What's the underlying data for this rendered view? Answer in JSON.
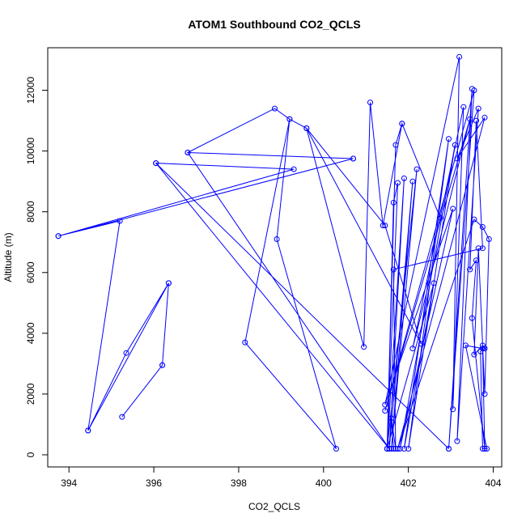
{
  "chart_data": {
    "type": "line",
    "title": "ATOM1 Southbound CO2_QCLS",
    "xlabel": "CO2_QCLS",
    "ylabel": "Altitude (m)",
    "xlim": [
      393.5,
      404.2
    ],
    "ylim": [
      -400,
      13400
    ],
    "xticks": [
      394,
      396,
      398,
      400,
      402,
      404
    ],
    "yticks": [
      0,
      2000,
      4000,
      6000,
      8000,
      10000,
      12000
    ],
    "grid": false,
    "colors": {
      "series": "#0000ff"
    },
    "series": [
      {
        "points": [
          [
            396.2,
            2950
          ],
          [
            395.25,
            1250
          ],
          [
            396.2,
            2950
          ],
          [
            396.35,
            5650
          ],
          [
            394.45,
            800
          ],
          [
            395.35,
            3350
          ],
          [
            396.35,
            5650
          ],
          [
            394.45,
            800
          ],
          [
            395.2,
            7700
          ],
          [
            393.75,
            7200
          ],
          [
            400.7,
            9750
          ],
          [
            393.75,
            7200
          ],
          [
            399.3,
            9400
          ],
          [
            396.05,
            9600
          ],
          [
            402.95,
            200
          ],
          [
            396.05,
            9600
          ],
          [
            401.55,
            200
          ],
          [
            396.8,
            9950
          ],
          [
            400.7,
            9750
          ],
          [
            396.8,
            9950
          ],
          [
            398.85,
            11400
          ],
          [
            399.2,
            11050
          ],
          [
            398.9,
            7100
          ],
          [
            400.3,
            200
          ],
          [
            398.15,
            3700
          ],
          [
            399.2,
            11050
          ],
          [
            399.6,
            10750
          ],
          [
            402.3,
            3650
          ],
          [
            401.45,
            7550
          ],
          [
            399.6,
            10750
          ],
          [
            400.95,
            3550
          ],
          [
            401.1,
            11600
          ],
          [
            401.4,
            7550
          ],
          [
            401.85,
            10900
          ],
          [
            402.75,
            7800
          ],
          [
            401.85,
            10900
          ],
          [
            401.7,
            10200
          ],
          [
            401.5,
            200
          ],
          [
            401.65,
            8300
          ],
          [
            401.75,
            8950
          ],
          [
            401.5,
            200
          ],
          [
            401.9,
            9100
          ],
          [
            401.55,
            200
          ],
          [
            402.1,
            9000
          ],
          [
            401.6,
            200
          ],
          [
            402.2,
            9400
          ],
          [
            401.5,
            200
          ],
          [
            402.6,
            5650
          ],
          [
            401.9,
            200
          ],
          [
            402.95,
            10400
          ],
          [
            402.0,
            200
          ],
          [
            403.1,
            10200
          ],
          [
            401.8,
            200
          ],
          [
            403.05,
            8100
          ],
          [
            401.45,
            1650
          ],
          [
            403.2,
            13100
          ],
          [
            403.05,
            1500
          ],
          [
            403.3,
            11450
          ],
          [
            402.1,
            3500
          ],
          [
            403.45,
            11050
          ],
          [
            401.45,
            1450
          ],
          [
            403.55,
            12000
          ],
          [
            402.95,
            200
          ],
          [
            403.5,
            12050
          ],
          [
            403.15,
            450
          ],
          [
            403.65,
            11400
          ],
          [
            403.15,
            9750
          ],
          [
            403.8,
            11100
          ],
          [
            401.75,
            200
          ],
          [
            403.55,
            7750
          ],
          [
            403.75,
            7500
          ],
          [
            403.9,
            7100
          ],
          [
            403.8,
            2000
          ],
          [
            403.65,
            6800
          ],
          [
            403.55,
            3300
          ],
          [
            403.75,
            3600
          ],
          [
            403.8,
            3500
          ],
          [
            403.7,
            3400
          ],
          [
            403.75,
            200
          ],
          [
            403.85,
            200
          ],
          [
            403.35,
            3600
          ],
          [
            403.75,
            3500
          ],
          [
            403.8,
            200
          ],
          [
            403.5,
            4500
          ],
          [
            403.6,
            6400
          ],
          [
            403.45,
            6100
          ],
          [
            403.6,
            11000
          ],
          [
            403.75,
            6800
          ],
          [
            401.65,
            6100
          ],
          [
            401.7,
            200
          ],
          [
            401.6,
            1200
          ],
          [
            401.65,
            200
          ]
        ]
      }
    ]
  }
}
